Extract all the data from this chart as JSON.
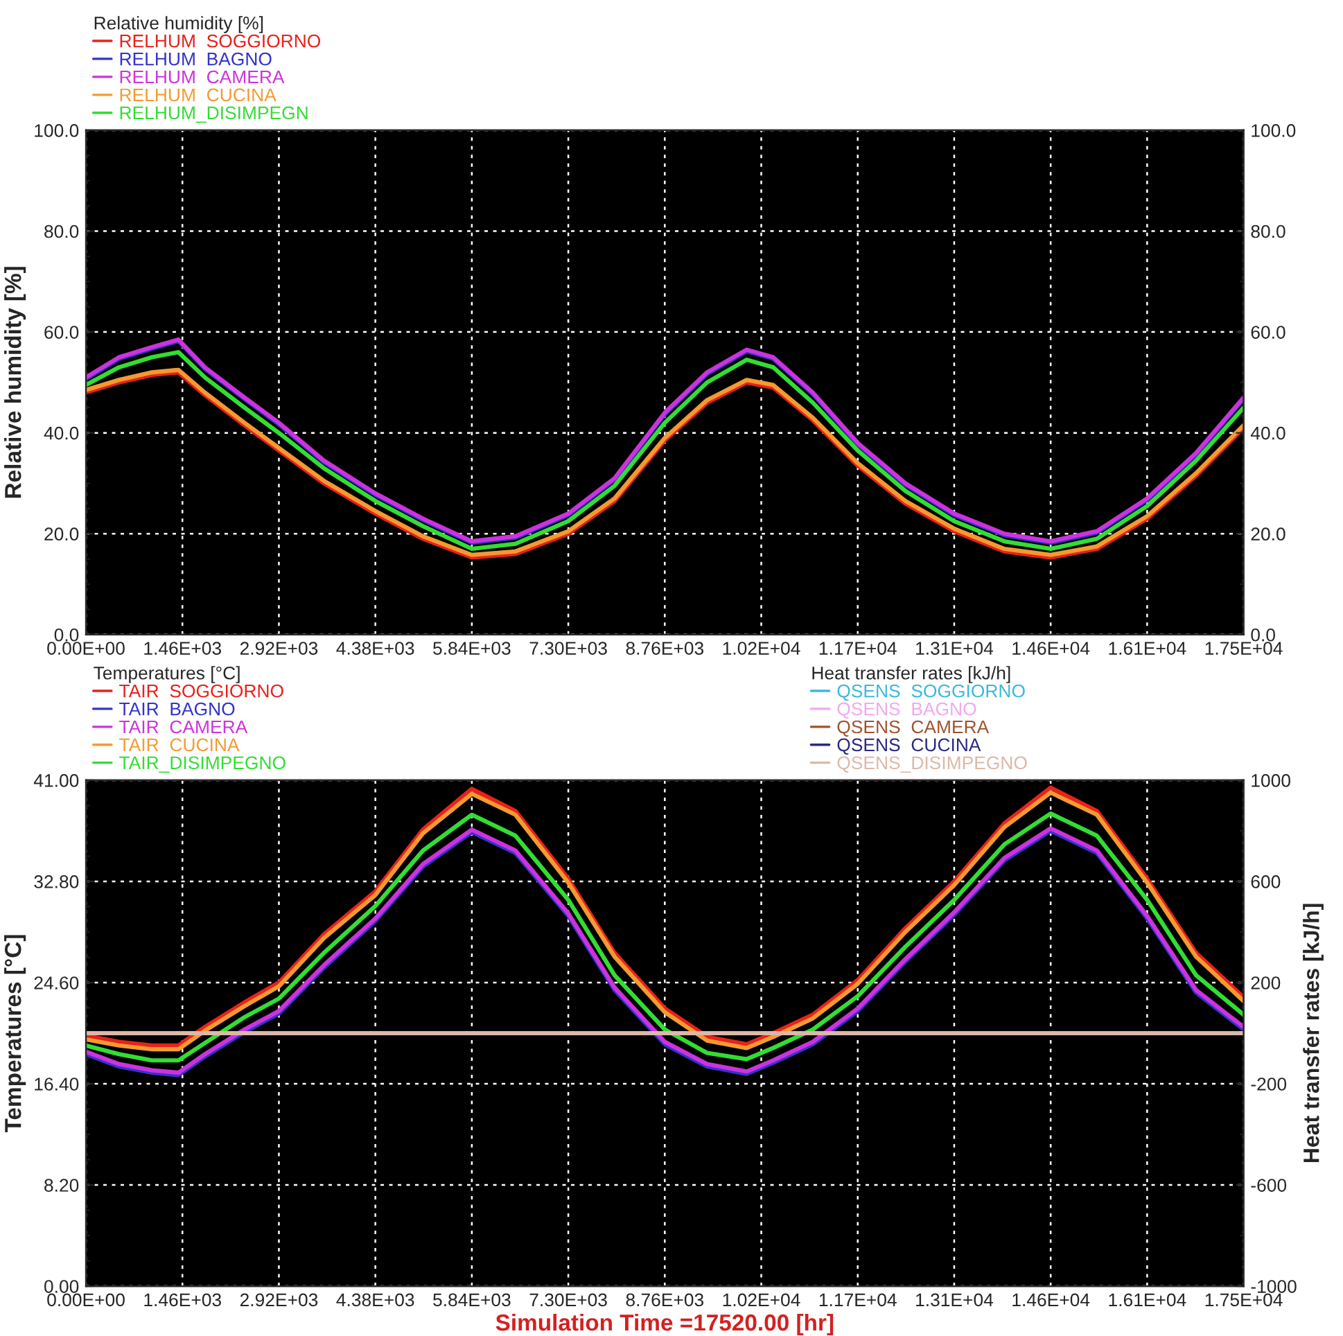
{
  "chart_data": [
    {
      "type": "line",
      "ylabel": "Relative humidity [%]",
      "legend_title": "Relative humidity [%]",
      "legend": "top left",
      "grid": true,
      "x": [
        0,
        500,
        1000,
        1400,
        1800,
        2400,
        2920,
        3600,
        4380,
        5100,
        5840,
        6500,
        7300,
        8000,
        8760,
        9400,
        10000,
        10400,
        11000,
        11680,
        12400,
        13140,
        13900,
        14600,
        15300,
        16060,
        16800,
        17520
      ],
      "xlim": [
        0,
        17520
      ],
      "xticks": [
        {
          "value": 0,
          "label": "0.00E+00"
        },
        {
          "value": 1460,
          "label": "1.46E+03"
        },
        {
          "value": 2920,
          "label": "2.92E+03"
        },
        {
          "value": 4380,
          "label": "4.38E+03"
        },
        {
          "value": 5840,
          "label": "5.84E+03"
        },
        {
          "value": 7300,
          "label": "7.30E+03"
        },
        {
          "value": 8760,
          "label": "8.76E+03"
        },
        {
          "value": 10220,
          "label": "1.02E+04"
        },
        {
          "value": 11680,
          "label": "1.17E+04"
        },
        {
          "value": 13140,
          "label": "1.31E+04"
        },
        {
          "value": 14600,
          "label": "1.46E+04"
        },
        {
          "value": 16060,
          "label": "1.61E+04"
        },
        {
          "value": 17520,
          "label": "1.75E+04"
        }
      ],
      "ylim": [
        0,
        100
      ],
      "yticks": [
        {
          "value": 0,
          "label": "0.0"
        },
        {
          "value": 20,
          "label": "20.0"
        },
        {
          "value": 40,
          "label": "40.0"
        },
        {
          "value": 60,
          "label": "60.0"
        },
        {
          "value": 80,
          "label": "80.0"
        },
        {
          "value": 100,
          "label": "100.0"
        }
      ],
      "y2lim": [
        0,
        100
      ],
      "y2ticks": [
        {
          "value": 0,
          "label": "0.0"
        },
        {
          "value": 20,
          "label": "20.0"
        },
        {
          "value": 40,
          "label": "40.0"
        },
        {
          "value": 60,
          "label": "60.0"
        },
        {
          "value": 80,
          "label": "80.0"
        },
        {
          "value": 100,
          "label": "100.0"
        }
      ],
      "series": [
        {
          "name": "RELHUM  SOGGIORNO",
          "color": "#e8221b",
          "values": [
            48,
            50,
            51.5,
            52,
            47.5,
            41.5,
            36.5,
            30,
            24,
            19,
            15.3,
            16,
            20,
            26.5,
            38.5,
            46,
            50,
            49,
            42.5,
            33.5,
            26,
            20.5,
            16.5,
            15.3,
            17,
            23,
            31.5,
            41
          ]
        },
        {
          "name": "RELHUM  BAGNO",
          "color": "#3333cc",
          "values": [
            50.7,
            54.7,
            56.7,
            58.2,
            52.7,
            46.7,
            41.7,
            34.2,
            27.7,
            22.7,
            18.2,
            19.2,
            23.7,
            30.7,
            43.7,
            51.7,
            56.2,
            54.7,
            47.7,
            37.7,
            29.7,
            23.7,
            19.7,
            18.2,
            20.2,
            26.7,
            35.7,
            46.7
          ]
        },
        {
          "name": "RELHUM  CAMERA",
          "color": "#cc33dd",
          "values": [
            51,
            55,
            57,
            58.5,
            53,
            47,
            42,
            34.5,
            28,
            23,
            18.5,
            19.5,
            24,
            31,
            44,
            52,
            56.5,
            55,
            48,
            38,
            30,
            24,
            20,
            18.5,
            20.5,
            27,
            36,
            47
          ]
        },
        {
          "name": "RELHUM  CUCINA",
          "color": "#f59a30",
          "values": [
            48.5,
            50.5,
            52,
            52.5,
            48,
            42,
            37,
            30.5,
            24.5,
            19.5,
            15.8,
            16.5,
            20.5,
            27,
            39,
            46.5,
            50.5,
            49.5,
            43,
            34,
            26.5,
            21,
            17,
            15.8,
            17.5,
            23.5,
            32,
            41.5
          ]
        },
        {
          "name": "RELHUM_DISIMPEGN",
          "color": "#33dd33",
          "values": [
            49.5,
            53,
            55,
            56,
            51,
            45,
            40,
            33,
            26.5,
            21.5,
            17,
            18,
            22.5,
            29.5,
            42,
            50,
            54.5,
            53,
            46,
            36.5,
            28.5,
            22.5,
            18.5,
            17,
            19,
            25.5,
            34.5,
            45
          ]
        }
      ]
    },
    {
      "type": "line",
      "xlabel": "Simulation Time =17520.00 [hr]",
      "ylabel": "Temperatures [°C]",
      "y2label": "Heat transfer rates [kJ/h]",
      "legend_title": "Temperatures [°C]",
      "annotations": [
        "Heat transfer rates [kJ/h]"
      ],
      "legend": "top left",
      "grid": true,
      "x": [
        0,
        500,
        1000,
        1400,
        1800,
        2400,
        2920,
        3600,
        4380,
        5100,
        5840,
        6500,
        7300,
        8000,
        8760,
        9400,
        10000,
        10400,
        11000,
        11680,
        12400,
        13140,
        13900,
        14600,
        15300,
        16060,
        16800,
        17520
      ],
      "xlim": [
        0,
        17520
      ],
      "xticks": [
        {
          "value": 0,
          "label": "0.00E+00"
        },
        {
          "value": 1460,
          "label": "1.46E+03"
        },
        {
          "value": 2920,
          "label": "2.92E+03"
        },
        {
          "value": 4380,
          "label": "4.38E+03"
        },
        {
          "value": 5840,
          "label": "5.84E+03"
        },
        {
          "value": 7300,
          "label": "7.30E+03"
        },
        {
          "value": 8760,
          "label": "8.76E+03"
        },
        {
          "value": 10220,
          "label": "1.02E+04"
        },
        {
          "value": 11680,
          "label": "1.17E+04"
        },
        {
          "value": 13140,
          "label": "1.31E+04"
        },
        {
          "value": 14600,
          "label": "1.46E+04"
        },
        {
          "value": 16060,
          "label": "1.61E+04"
        },
        {
          "value": 17520,
          "label": "1.75E+04"
        }
      ],
      "ylim": [
        0,
        41
      ],
      "yticks": [
        {
          "value": 0,
          "label": "0.00"
        },
        {
          "value": 8.2,
          "label": "8.20"
        },
        {
          "value": 16.4,
          "label": "16.40"
        },
        {
          "value": 24.6,
          "label": "24.60"
        },
        {
          "value": 32.8,
          "label": "32.80"
        },
        {
          "value": 41,
          "label": "41.00"
        }
      ],
      "y2lim": [
        -1000,
        1000
      ],
      "y2ticks": [
        -1000,
        -600,
        -200,
        200,
        600,
        1000
      ],
      "series": [
        {
          "name": "TAIR  SOGGIORNO",
          "color": "#e8221b",
          "values": [
            20.3,
            19.8,
            19.5,
            19.5,
            21,
            23,
            24.6,
            28.5,
            32,
            37,
            40.3,
            38.5,
            33,
            27,
            22.5,
            20.2,
            19.6,
            20.5,
            22,
            24.8,
            29,
            32.8,
            37.5,
            40.4,
            38.5,
            33,
            27,
            23.4
          ]
        },
        {
          "name": "TAIR  BAGNO",
          "color": "#3333cc",
          "values": [
            18.8,
            17.8,
            17.3,
            17.1,
            18.6,
            20.6,
            22.1,
            25.8,
            29.6,
            34,
            36.8,
            35.1,
            30,
            24,
            19.6,
            17.8,
            17.2,
            18.1,
            19.6,
            22.3,
            26.3,
            30.1,
            34.5,
            36.9,
            35.1,
            29.8,
            23.8,
            20.8
          ]
        },
        {
          "name": "TAIR  CAMERA",
          "color": "#cc33dd",
          "values": [
            19,
            18,
            17.5,
            17.3,
            18.8,
            20.8,
            22.3,
            26,
            29.8,
            34.2,
            37,
            35.3,
            30.2,
            24.2,
            19.8,
            18,
            17.4,
            18.3,
            19.8,
            22.5,
            26.5,
            30.3,
            34.7,
            37.1,
            35.3,
            30,
            24,
            21
          ]
        },
        {
          "name": "TAIR  CUCINA",
          "color": "#f59a30",
          "values": [
            20,
            19.5,
            19.2,
            19.2,
            20.7,
            22.7,
            24.3,
            28.2,
            31.7,
            36.7,
            39.9,
            38.2,
            32.7,
            26.7,
            22.2,
            19.9,
            19.3,
            20.2,
            21.7,
            24.5,
            28.7,
            32.5,
            37.2,
            40,
            38.2,
            32.7,
            26.7,
            23.1
          ]
        },
        {
          "name": "TAIR_DISIMPEGNO",
          "color": "#33dd33",
          "values": [
            19.5,
            18.8,
            18.3,
            18.3,
            19.7,
            21.8,
            23.3,
            27,
            30.8,
            35.3,
            38.2,
            36.5,
            31.3,
            25.2,
            20.8,
            18.9,
            18.4,
            19.3,
            20.8,
            23.5,
            27.5,
            31.3,
            35.8,
            38.3,
            36.5,
            31.3,
            25.2,
            22
          ]
        },
        {
          "name": "QSENS  SOGGIORNO",
          "color": "#3cb8e0",
          "axis": "y2",
          "values": [
            null,
            null,
            null,
            null,
            null,
            null,
            null,
            null,
            null,
            null,
            null,
            null,
            null,
            null,
            null,
            null,
            null,
            null,
            null,
            null,
            null,
            null,
            null,
            null,
            null,
            null,
            null,
            null
          ]
        },
        {
          "name": "QSENS  BAGNO",
          "color": "#f0a8f0",
          "axis": "y2",
          "values": [
            null,
            null,
            null,
            null,
            null,
            null,
            null,
            null,
            null,
            null,
            null,
            null,
            null,
            null,
            null,
            null,
            null,
            null,
            null,
            null,
            null,
            null,
            null,
            null,
            null,
            null,
            null,
            null
          ]
        },
        {
          "name": "QSENS  CAMERA",
          "color": "#a0522d",
          "axis": "y2",
          "values": [
            null,
            null,
            null,
            null,
            null,
            null,
            null,
            null,
            null,
            null,
            null,
            null,
            null,
            null,
            null,
            null,
            null,
            null,
            null,
            null,
            null,
            null,
            null,
            null,
            null,
            null,
            null,
            null
          ]
        },
        {
          "name": "QSENS  CUCINA",
          "color": "#2a2a80",
          "axis": "y2",
          "values": [
            null,
            null,
            null,
            null,
            null,
            null,
            null,
            null,
            null,
            null,
            null,
            null,
            null,
            null,
            null,
            null,
            null,
            null,
            null,
            null,
            null,
            null,
            null,
            null,
            null,
            null,
            null,
            null
          ]
        },
        {
          "name": "QSENS_DISIMPEGNO",
          "color": "#dcb8a8",
          "axis": "y2",
          "x": [
            0,
            17520
          ],
          "values": [
            0,
            0
          ]
        }
      ]
    }
  ]
}
